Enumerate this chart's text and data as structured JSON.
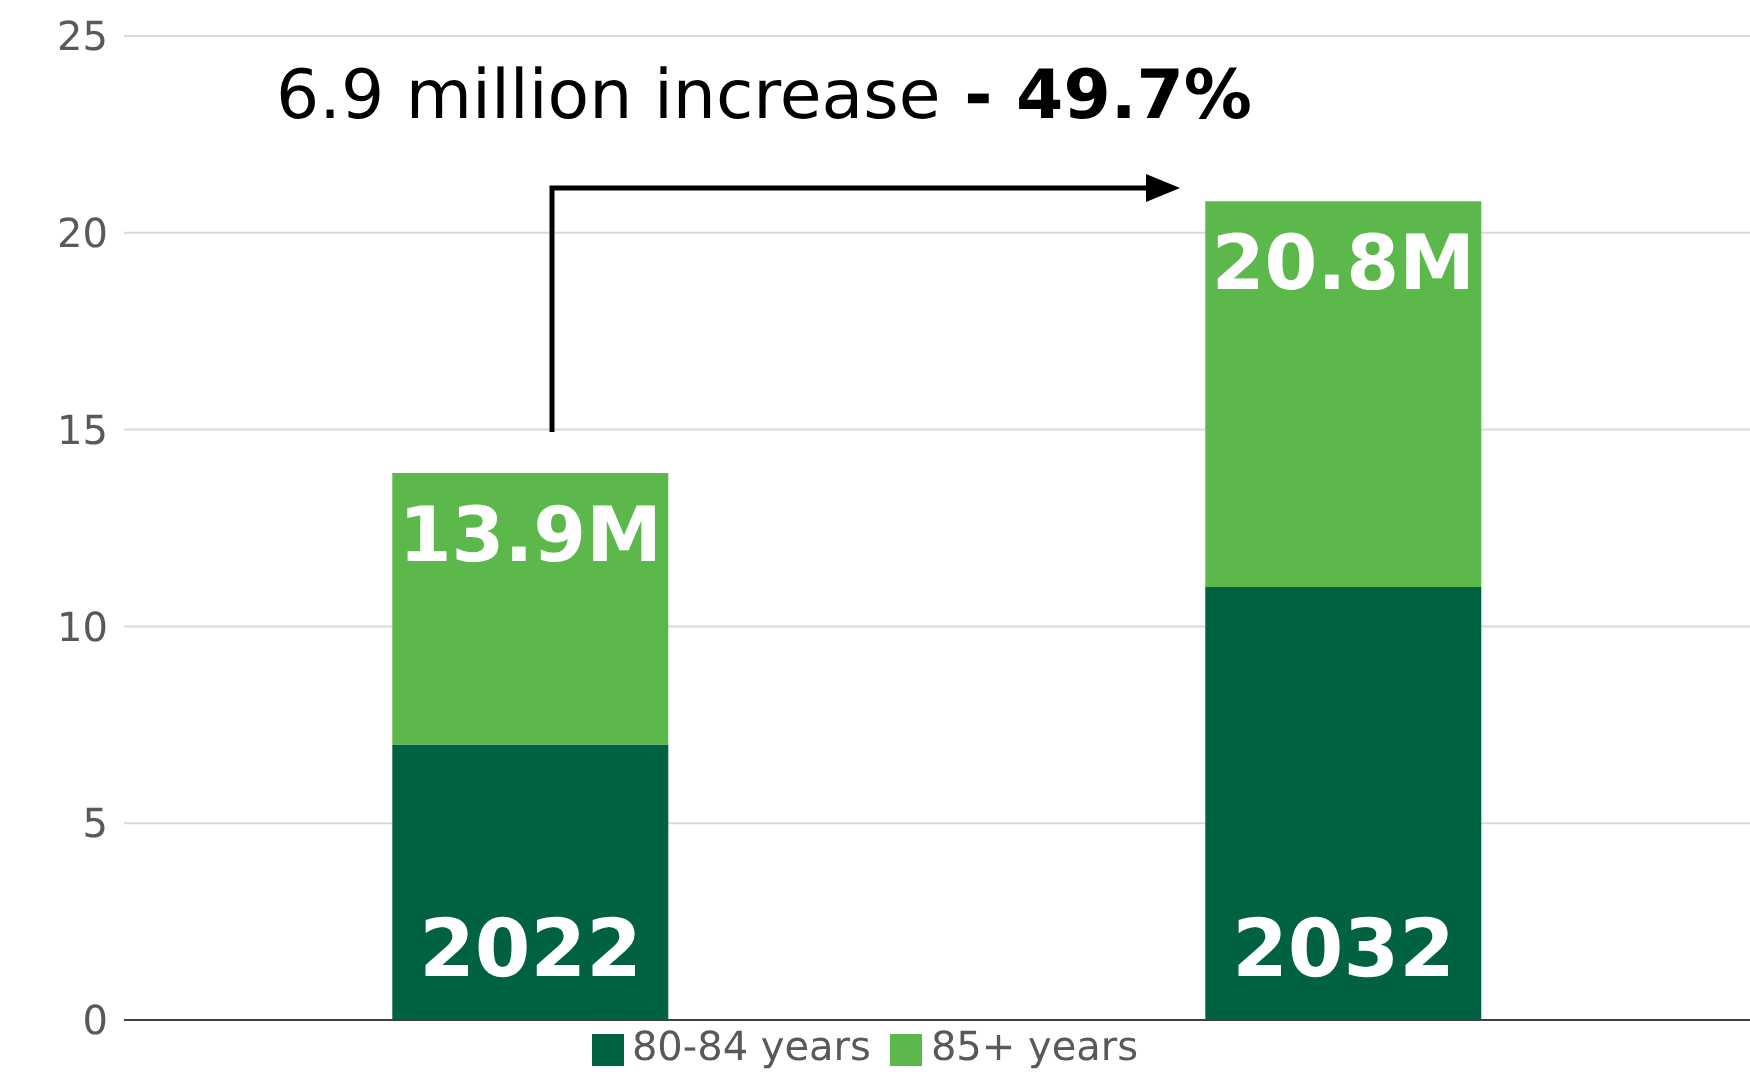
{
  "chart_data": {
    "type": "bar",
    "stacked": true,
    "categories": [
      "2022",
      "2032"
    ],
    "series": [
      {
        "name": "80-84 years",
        "color": "#006241",
        "values": [
          7.0,
          11.0
        ]
      },
      {
        "name": "85+ years",
        "color": "#5cb84a",
        "values": [
          6.9,
          9.8
        ]
      }
    ],
    "totals": [
      "13.9M",
      "20.8M"
    ],
    "annotations": [
      "6.9 million increase",
      "- 49.7%"
    ],
    "ylim": [
      0,
      25
    ],
    "yticks": [
      0,
      5,
      10,
      15,
      20,
      25
    ],
    "grid": "y",
    "legend": "bottom"
  }
}
